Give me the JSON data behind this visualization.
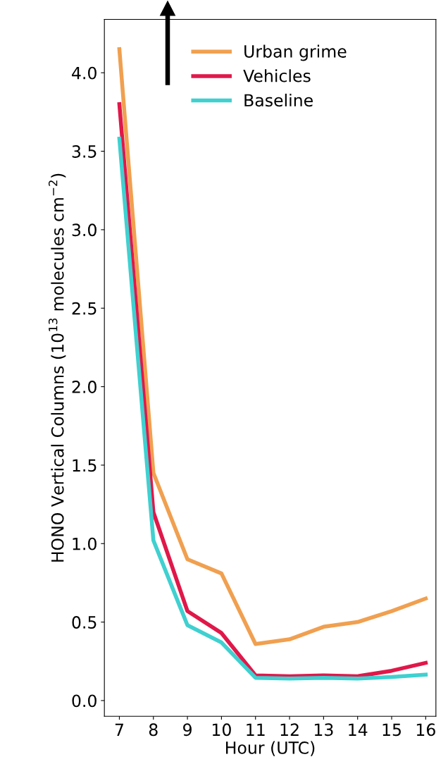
{
  "chart_data": {
    "type": "line",
    "xlabel": "Hour (UTC)",
    "ylabel": "HONO Vertical Columns (10$^{13}$ molecules cm$^{−2}$)",
    "x": [
      7,
      8,
      9,
      10,
      11,
      12,
      13,
      14,
      15,
      16
    ],
    "series": [
      {
        "name": "Urban grime",
        "color": "#f0a050",
        "values": [
          4.15,
          1.45,
          0.9,
          0.81,
          0.36,
          0.39,
          0.47,
          0.5,
          0.57,
          0.65
        ]
      },
      {
        "name": "Vehicles",
        "color": "#e0184a",
        "values": [
          3.8,
          1.2,
          0.57,
          0.43,
          0.16,
          0.155,
          0.16,
          0.155,
          0.19,
          0.24
        ]
      },
      {
        "name": "Baseline",
        "color": "#40d0d0",
        "values": [
          3.58,
          1.02,
          0.48,
          0.37,
          0.145,
          0.14,
          0.145,
          0.14,
          0.15,
          0.165
        ]
      }
    ],
    "xlim": [
      6.56,
      16.3
    ],
    "xticks": [
      7,
      8,
      9,
      10,
      11,
      12,
      13,
      14,
      15,
      16
    ],
    "ylim": [
      -0.1,
      4.34
    ],
    "yticks": [
      {
        "value": 0,
        "label": "0.0"
      },
      {
        "value": 0.5,
        "label": "0.5"
      },
      {
        "value": 1,
        "label": "1.0"
      },
      {
        "value": 1.5,
        "label": "1.5"
      },
      {
        "value": 2,
        "label": "2.0"
      },
      {
        "value": 2.5,
        "label": "2.5"
      },
      {
        "value": 3,
        "label": "3.0"
      },
      {
        "value": 3.5,
        "label": "3.5"
      },
      {
        "value": 4,
        "label": "4.0"
      }
    ],
    "legend": "top",
    "grid": false,
    "marker": "none",
    "line_style": "solid"
  }
}
